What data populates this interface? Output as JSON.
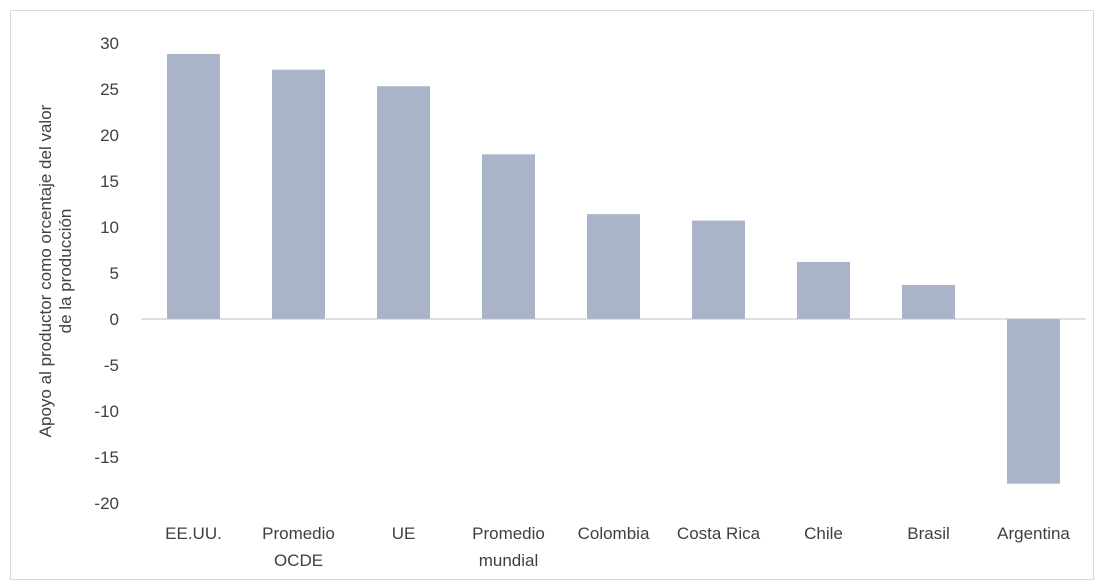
{
  "colors": {
    "bar": "#aab4c8",
    "axis": "#bfbfbf",
    "text": "#404040",
    "frame": "#d9d9d9"
  },
  "chart_data": {
    "type": "bar",
    "title": "",
    "xlabel": "",
    "ylabel_lines": [
      "Apoyo al productor como orcentaje del valor",
      "de la producción"
    ],
    "categories": [
      [
        "EE.UU."
      ],
      [
        "Promedio",
        "OCDE"
      ],
      [
        "UE"
      ],
      [
        "Promedio",
        "mundial"
      ],
      [
        "Colombia"
      ],
      [
        "Costa Rica"
      ],
      [
        "Chile"
      ],
      [
        "Brasil"
      ],
      [
        "Argentina"
      ]
    ],
    "values": [
      28.8,
      27.1,
      25.3,
      17.9,
      11.4,
      10.7,
      6.2,
      3.7,
      -17.9
    ],
    "ylim": [
      -20,
      30
    ],
    "yticks": [
      30,
      25,
      20,
      15,
      10,
      5,
      0,
      -5,
      -10,
      -15,
      -20
    ],
    "ytick_labels": [
      "30",
      "25",
      "20",
      "15",
      "10",
      "5",
      "0",
      "-5",
      "-10",
      "-15",
      "-20"
    ],
    "grid": false,
    "legend": "none"
  }
}
